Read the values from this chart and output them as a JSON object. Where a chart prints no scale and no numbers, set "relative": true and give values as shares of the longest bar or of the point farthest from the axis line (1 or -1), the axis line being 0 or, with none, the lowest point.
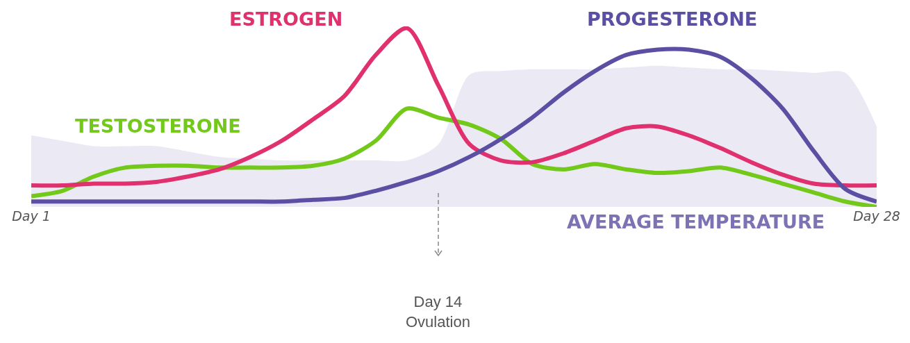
{
  "chart_data": {
    "type": "line",
    "relative": true,
    "categories": [
      "Day 1",
      null,
      null,
      null,
      null,
      null,
      null,
      null,
      null,
      null,
      null,
      null,
      null,
      null,
      null,
      null,
      null,
      null,
      null,
      null,
      null,
      null,
      null,
      null,
      null,
      null,
      null,
      "Day 28"
    ],
    "legend": false,
    "marker": "none",
    "line_style": "solid",
    "series": [
      {
        "name": "AVERAGE TEMPERATURE",
        "type": "area",
        "color": "#7b73b3",
        "values": [
          0.4,
          0.37,
          0.34,
          0.34,
          0.34,
          0.31,
          0.28,
          0.27,
          0.26,
          0.26,
          0.26,
          0.26,
          0.26,
          0.35,
          0.74,
          0.76,
          0.77,
          0.77,
          0.77,
          0.78,
          0.79,
          0.78,
          0.77,
          0.77,
          0.76,
          0.75,
          0.75,
          0.45
        ]
      },
      {
        "name": "TESTOSTERONE",
        "color": "#72c91a",
        "values": [
          0.06,
          0.09,
          0.17,
          0.22,
          0.23,
          0.23,
          0.22,
          0.22,
          0.22,
          0.23,
          0.27,
          0.37,
          0.55,
          0.5,
          0.46,
          0.38,
          0.24,
          0.21,
          0.24,
          0.21,
          0.19,
          0.2,
          0.22,
          0.18,
          0.13,
          0.08,
          0.03,
          0
        ]
      },
      {
        "name": "ESTROGEN",
        "color": "#e0306e",
        "values": [
          0.12,
          0.12,
          0.13,
          0.13,
          0.14,
          0.17,
          0.21,
          0.28,
          0.37,
          0.49,
          0.62,
          0.85,
          1,
          0.68,
          0.35,
          0.26,
          0.25,
          0.3,
          0.37,
          0.44,
          0.45,
          0.4,
          0.33,
          0.25,
          0.18,
          0.13,
          0.12,
          0.12
        ]
      },
      {
        "name": "PROGESTERONE",
        "color": "#5a4fa3",
        "values": [
          0.03,
          0.03,
          0.03,
          0.03,
          0.03,
          0.03,
          0.03,
          0.03,
          0.03,
          0.04,
          0.05,
          0.09,
          0.14,
          0.2,
          0.28,
          0.38,
          0.5,
          0.64,
          0.76,
          0.85,
          0.88,
          0.88,
          0.84,
          0.72,
          0.55,
          0.31,
          0.1,
          0.03
        ]
      }
    ],
    "annotations": [
      "Day 14\nOvulation"
    ]
  }
}
